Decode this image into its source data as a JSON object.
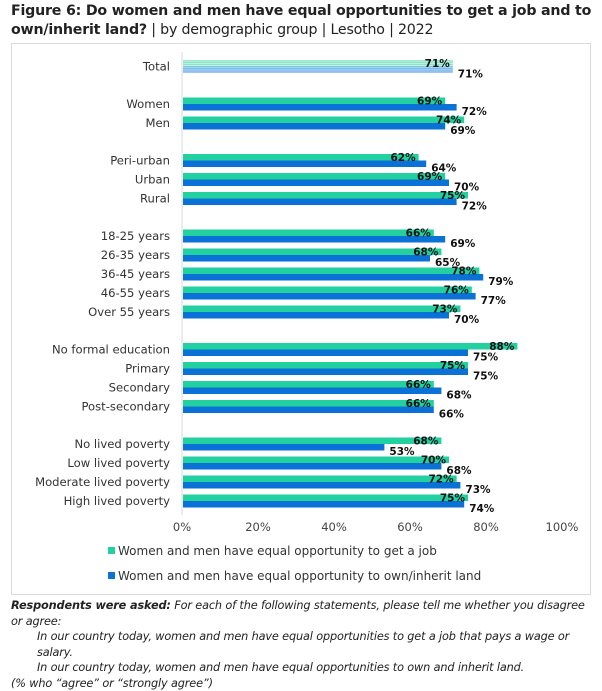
{
  "title": {
    "bold": "Figure 6: Do women and men have equal opportunities to get a job and to own/inherit land?",
    "rest": " | by demographic group | Lesotho | 2022"
  },
  "colors": {
    "job": "#22d0a0",
    "land": "#0a72d6",
    "job_total": "#7fe3c4",
    "land_total": "#6fb0ec"
  },
  "chart_data": {
    "type": "bar",
    "orientation": "horizontal",
    "title": "Do women and men have equal opportunities to get a job and to own/inherit land? | by demographic group | Lesotho | 2022",
    "xlabel": "",
    "ylabel": "",
    "xlim": [
      0,
      100
    ],
    "x_ticks": [
      "0%",
      "20%",
      "40%",
      "60%",
      "80%",
      "100%"
    ],
    "grid": false,
    "legend_position": "bottom",
    "categories": [
      "Total",
      "Women",
      "Men",
      "Peri-urban",
      "Urban",
      "Rural",
      "18-25 years",
      "26-35 years",
      "36-45 years",
      "46-55 years",
      "Over 55 years",
      "No formal education",
      "Primary",
      "Secondary",
      "Post-secondary",
      "No lived poverty",
      "Low lived poverty",
      "Moderate lived poverty",
      "High lived poverty"
    ],
    "groups": [
      [
        "Total"
      ],
      [
        "Women",
        "Men"
      ],
      [
        "Peri-urban",
        "Urban",
        "Rural"
      ],
      [
        "18-25 years",
        "26-35 years",
        "36-45 years",
        "46-55 years",
        "Over 55 years"
      ],
      [
        "No formal education",
        "Primary",
        "Secondary",
        "Post-secondary"
      ],
      [
        "No lived poverty",
        "Low lived poverty",
        "Moderate lived poverty",
        "High lived poverty"
      ]
    ],
    "series": [
      {
        "name": "Women and men have equal opportunity to get a job",
        "values": [
          71,
          69,
          74,
          62,
          69,
          75,
          66,
          68,
          78,
          76,
          73,
          88,
          75,
          66,
          66,
          68,
          70,
          72,
          75
        ]
      },
      {
        "name": "Women and men have equal opportunity to own/inherit land",
        "values": [
          71,
          72,
          69,
          64,
          70,
          72,
          69,
          65,
          79,
          77,
          70,
          75,
          75,
          68,
          66,
          53,
          68,
          73,
          74
        ]
      }
    ],
    "value_suffix": "%"
  },
  "notes": {
    "lead": "Respondents were asked:",
    "question": " For each of the following statements, please tell me whether you disagree or agree:",
    "statement1": "In our country today, women and men have equal opportunities to get a job that pays a wage or salary.",
    "statement2": "In our country today, women and men have equal opportunities to own and inherit land.",
    "footnote": "(% who “agree” or “strongly agree”)"
  }
}
